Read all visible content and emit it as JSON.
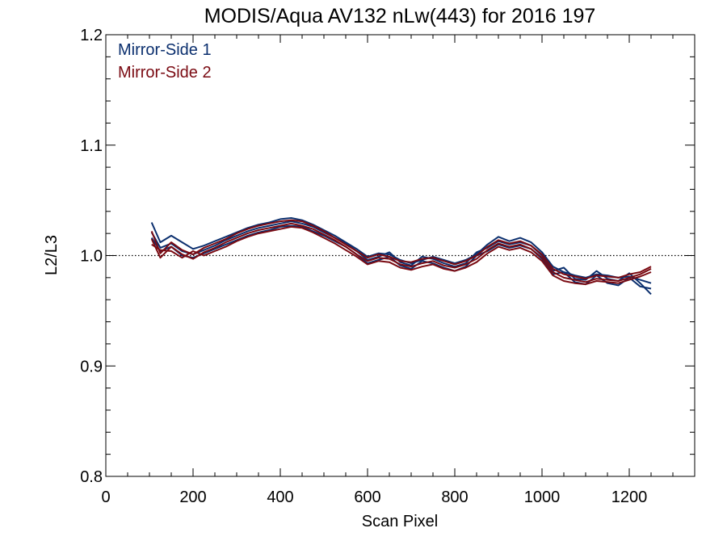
{
  "chart_data": {
    "type": "line",
    "title": "MODIS/Aqua AV132 nLw(443) for 2016 197",
    "xlabel": "Scan Pixel",
    "ylabel": "L2/L3",
    "xlim": [
      0,
      1350
    ],
    "ylim": [
      0.8,
      1.2
    ],
    "x_ticks": [
      0,
      200,
      400,
      600,
      800,
      1000,
      1200
    ],
    "x_tick_labels": [
      "0",
      "200",
      "400",
      "600",
      "800",
      "1000",
      "1200"
    ],
    "y_ticks": [
      0.8,
      0.9,
      1.0,
      1.1,
      1.2
    ],
    "y_tick_labels": [
      "0.8",
      "0.9",
      "1.0",
      "1.1",
      "1.2"
    ],
    "reference_line": 1.0,
    "legend_position": "top-left",
    "x": [
      105,
      125,
      150,
      175,
      200,
      225,
      250,
      275,
      300,
      325,
      350,
      375,
      400,
      425,
      450,
      475,
      500,
      525,
      550,
      575,
      600,
      625,
      650,
      675,
      700,
      725,
      750,
      775,
      800,
      825,
      850,
      875,
      900,
      925,
      950,
      975,
      1000,
      1025,
      1050,
      1075,
      1100,
      1125,
      1150,
      1175,
      1200,
      1225,
      1250
    ],
    "series": [
      {
        "name": "Mirror-Side 1",
        "color": "#0b2f6e",
        "lines": [
          [
            1.03,
            1.012,
            1.018,
            1.012,
            1.006,
            1.009,
            1.013,
            1.017,
            1.021,
            1.025,
            1.028,
            1.03,
            1.033,
            1.034,
            1.032,
            1.028,
            1.023,
            1.018,
            1.012,
            1.006,
            0.999,
            1.002,
            1.001,
            0.996,
            0.993,
            0.996,
            0.999,
            0.996,
            0.993,
            0.996,
            1.001,
            1.01,
            1.017,
            1.013,
            1.016,
            1.012,
            1.003,
            0.99,
            0.985,
            0.982,
            0.98,
            0.983,
            0.982,
            0.98,
            0.981,
            0.978,
            0.975
          ],
          [
            1.021,
            1.007,
            1.011,
            1.004,
            1.001,
            1.005,
            1.009,
            1.014,
            1.018,
            1.022,
            1.025,
            1.027,
            1.029,
            1.031,
            1.029,
            1.026,
            1.021,
            1.016,
            1.011,
            1.004,
            0.996,
            0.999,
            1.003,
            0.994,
            0.991,
            0.999,
            0.997,
            0.993,
            0.99,
            0.993,
            1.003,
            1.007,
            1.013,
            1.01,
            1.012,
            1.009,
            1.0,
            0.986,
            0.989,
            0.979,
            0.978,
            0.986,
            0.979,
            0.977,
            0.984,
            0.975,
            0.965
          ],
          [
            1.016,
            1.004,
            1.008,
            1.0,
            0.998,
            1.002,
            1.006,
            1.01,
            1.014,
            1.018,
            1.021,
            1.023,
            1.026,
            1.027,
            1.026,
            1.022,
            1.018,
            1.013,
            1.008,
            1.001,
            0.993,
            0.996,
            0.999,
            0.991,
            0.988,
            0.995,
            0.993,
            0.989,
            0.986,
            0.99,
            1.0,
            1.004,
            1.01,
            1.007,
            1.009,
            1.006,
            0.997,
            0.983,
            0.985,
            0.976,
            0.974,
            0.982,
            0.975,
            0.973,
            0.98,
            0.972,
            0.97
          ]
        ]
      },
      {
        "name": "Mirror-Side 2",
        "color": "#7a0a12",
        "lines": [
          [
            1.022,
            1.002,
            1.012,
            1.005,
            1.001,
            1.007,
            1.011,
            1.015,
            1.02,
            1.024,
            1.027,
            1.029,
            1.031,
            1.032,
            1.031,
            1.027,
            1.022,
            1.016,
            1.01,
            1.004,
            0.998,
            1.001,
            0.999,
            0.995,
            0.994,
            0.997,
            0.998,
            0.995,
            0.992,
            0.995,
            1.0,
            1.008,
            1.014,
            1.011,
            1.013,
            1.009,
            1.001,
            0.988,
            0.983,
            0.981,
            0.979,
            0.982,
            0.981,
            0.98,
            0.983,
            0.985,
            0.99
          ],
          [
            1.015,
            0.998,
            1.008,
            1.001,
            0.997,
            1.003,
            1.007,
            1.012,
            1.016,
            1.02,
            1.023,
            1.025,
            1.027,
            1.029,
            1.027,
            1.024,
            1.019,
            1.014,
            1.008,
            1.001,
            0.995,
            0.998,
            0.997,
            0.992,
            0.99,
            0.993,
            0.995,
            0.991,
            0.989,
            0.992,
            0.997,
            1.005,
            1.011,
            1.008,
            1.01,
            1.006,
            0.998,
            0.985,
            0.98,
            0.978,
            0.976,
            0.979,
            0.978,
            0.977,
            0.98,
            0.983,
            0.988
          ],
          [
            1.01,
            1.005,
            1.004,
            0.998,
            1.004,
            1.0,
            1.004,
            1.008,
            1.013,
            1.017,
            1.02,
            1.022,
            1.024,
            1.026,
            1.025,
            1.021,
            1.016,
            1.011,
            1.005,
            0.999,
            0.992,
            0.995,
            0.994,
            0.989,
            0.987,
            0.99,
            0.992,
            0.988,
            0.986,
            0.989,
            0.994,
            1.002,
            1.008,
            1.005,
            1.007,
            1.003,
            0.995,
            0.982,
            0.977,
            0.975,
            0.974,
            0.977,
            0.976,
            0.975,
            0.978,
            0.981,
            0.985
          ]
        ]
      }
    ]
  }
}
